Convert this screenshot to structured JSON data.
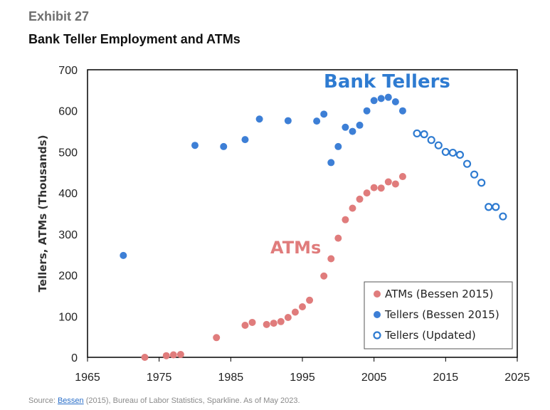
{
  "header": {
    "exhibit": "Exhibit 27",
    "title": "Bank Teller Employment and ATMs"
  },
  "footer": {
    "source_link": "Bessen",
    "source_rest": " (2015), Bureau of Labor Statistics, Sparkline. As of May 2023."
  },
  "chart_data": {
    "type": "scatter",
    "title": "Bank Teller Employment and ATMs",
    "xlabel": "",
    "ylabel": "Tellers, ATMs (Thousands)",
    "xlim": [
      1965,
      2025
    ],
    "ylim": [
      0,
      700
    ],
    "xticks": [
      1965,
      1975,
      1985,
      1995,
      2005,
      2015,
      2025
    ],
    "yticks": [
      0,
      100,
      200,
      300,
      400,
      500,
      600,
      700
    ],
    "grid": false,
    "legend_position": "bottom-right",
    "annotations": [
      {
        "text": "Bank Tellers",
        "color": "#2e7bd1"
      },
      {
        "text": "ATMs",
        "color": "#e07c7c"
      }
    ],
    "series": [
      {
        "name": "ATMs (Bessen 2015)",
        "color": "#e07c7c",
        "marker": "filled",
        "points": [
          [
            1973,
            0
          ],
          [
            1976,
            4
          ],
          [
            1977,
            6
          ],
          [
            1978,
            7
          ],
          [
            1983,
            48
          ],
          [
            1987,
            78
          ],
          [
            1988,
            85
          ],
          [
            1990,
            80
          ],
          [
            1991,
            83
          ],
          [
            1992,
            87
          ],
          [
            1993,
            97
          ],
          [
            1994,
            110
          ],
          [
            1995,
            123
          ],
          [
            1996,
            139
          ],
          [
            1998,
            198
          ],
          [
            1999,
            240
          ],
          [
            2000,
            290
          ],
          [
            2001,
            335
          ],
          [
            2002,
            363
          ],
          [
            2003,
            385
          ],
          [
            2004,
            400
          ],
          [
            2005,
            413
          ],
          [
            2006,
            412
          ],
          [
            2007,
            427
          ],
          [
            2008,
            422
          ],
          [
            2009,
            440
          ]
        ]
      },
      {
        "name": "Tellers (Bessen 2015)",
        "color": "#3d7fd6",
        "marker": "filled",
        "points": [
          [
            1970,
            248
          ],
          [
            1980,
            516
          ],
          [
            1984,
            513
          ],
          [
            1987,
            530
          ],
          [
            1989,
            580
          ],
          [
            1993,
            576
          ],
          [
            1997,
            575
          ],
          [
            1998,
            592
          ],
          [
            1999,
            474
          ],
          [
            2000,
            513
          ],
          [
            2001,
            560
          ],
          [
            2002,
            550
          ],
          [
            2003,
            565
          ],
          [
            2004,
            600
          ],
          [
            2005,
            625
          ],
          [
            2006,
            630
          ],
          [
            2007,
            633
          ],
          [
            2008,
            622
          ],
          [
            2009,
            600
          ]
        ]
      },
      {
        "name": "Tellers (Updated)",
        "color": "#2e7bd1",
        "marker": "hollow",
        "points": [
          [
            2011,
            545
          ],
          [
            2012,
            543
          ],
          [
            2013,
            529
          ],
          [
            2014,
            516
          ],
          [
            2015,
            500
          ],
          [
            2016,
            498
          ],
          [
            2017,
            493
          ],
          [
            2018,
            471
          ],
          [
            2019,
            445
          ],
          [
            2020,
            425
          ],
          [
            2021,
            366
          ],
          [
            2022,
            366
          ],
          [
            2023,
            343
          ]
        ]
      }
    ]
  }
}
